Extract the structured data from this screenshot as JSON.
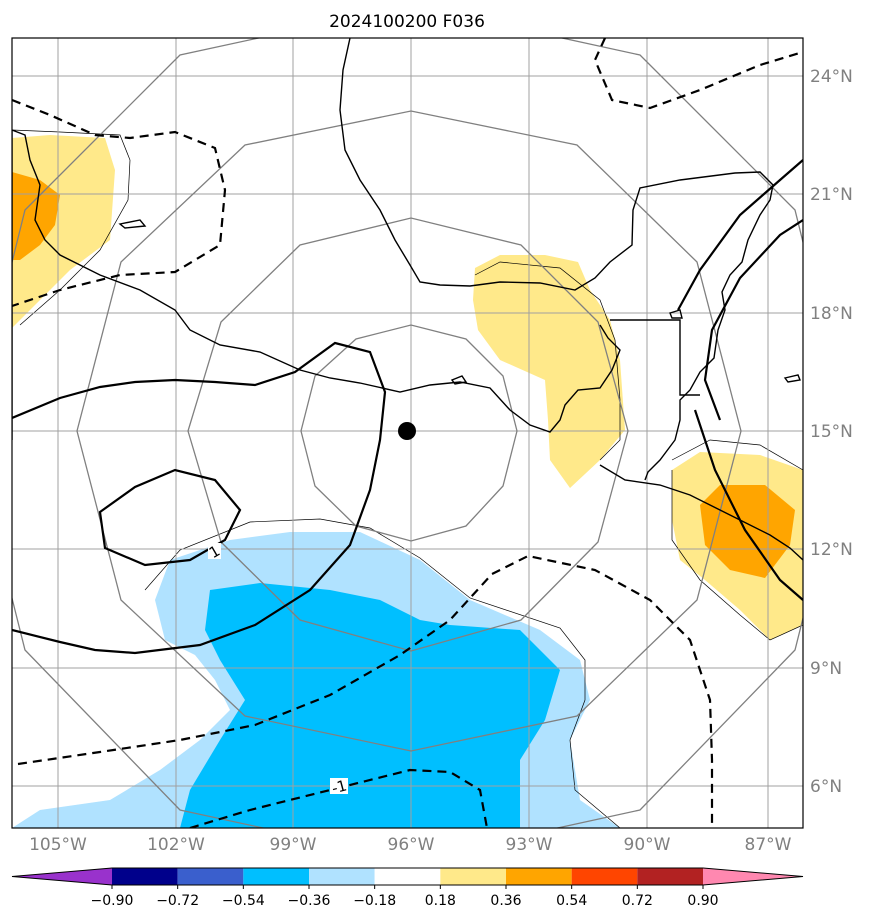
{
  "title": "2024100200 F036",
  "longitude_labels": [
    "105°W",
    "102°W",
    "99°W",
    "96°W",
    "93°W",
    "90°W",
    "87°W"
  ],
  "latitude_labels": [
    "24°N",
    "21°N",
    "18°N",
    "15°N",
    "12°N",
    "9°N",
    "6°N"
  ],
  "colorbar": {
    "tick_labels": [
      "−0.90",
      "−0.72",
      "−0.54",
      "−0.36",
      "−0.18",
      "0.18",
      "0.36",
      "0.54",
      "0.72",
      "0.90"
    ],
    "colors": [
      "#9932cc",
      "#00008b",
      "#3a5fcd",
      "#00bfff",
      "#b0e2ff",
      "#ffffff",
      "#ffe98a",
      "#ffa500",
      "#ff4500",
      "#b22222",
      "#ff88b0"
    ]
  },
  "contour_labels": [
    "1",
    "-1"
  ],
  "center_marker": {
    "lon": -96,
    "lat": 15
  },
  "colors": {
    "grid": "#a0a0a0",
    "range_rings": "#808080",
    "coast": "#000000"
  }
}
